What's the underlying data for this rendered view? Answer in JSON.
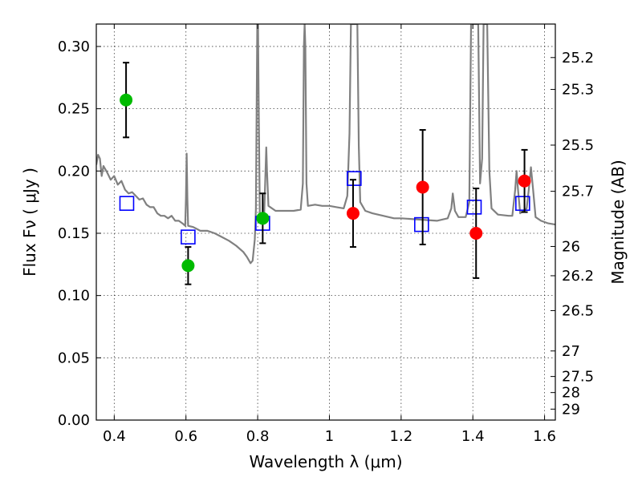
{
  "chart_data": {
    "type": "scatter",
    "xlabel": "Wavelength  λ (μm)",
    "ylabel": "Flux  Fν  ( μJy )",
    "y2label": "Magnitude (AB)",
    "xlim": [
      0.35,
      1.63
    ],
    "ylim": [
      0.0,
      0.318
    ],
    "grid": true,
    "x_ticks": [
      0.4,
      0.6,
      0.8,
      1.0,
      1.2,
      1.4,
      1.6
    ],
    "x_tick_labels": [
      "0.4",
      "0.6",
      "0.8",
      "1",
      "1.2",
      "1.4",
      "1.6"
    ],
    "y_ticks": [
      0.0,
      0.05,
      0.1,
      0.15,
      0.2,
      0.25,
      0.3
    ],
    "y_tick_labels": [
      "0.00",
      "0.05",
      "0.10",
      "0.15",
      "0.20",
      "0.25",
      "0.30"
    ],
    "y2_ticks": [
      {
        "label": "25.2",
        "flux": 0.2911
      },
      {
        "label": "25.3",
        "flux": 0.2655
      },
      {
        "label": "25.5",
        "flux": 0.2208
      },
      {
        "label": "25.7",
        "flux": 0.1837
      },
      {
        "label": "26",
        "flux": 0.1394
      },
      {
        "label": "26.2",
        "flux": 0.1159
      },
      {
        "label": "26.5",
        "flux": 0.0879
      },
      {
        "label": "27",
        "flux": 0.0555
      },
      {
        "label": "27.5",
        "flux": 0.035
      },
      {
        "label": "28",
        "flux": 0.0221
      },
      {
        "label": "29",
        "flux": 0.0088
      }
    ],
    "series": [
      {
        "marker": "circle",
        "color": "#00bb00",
        "points": [
          {
            "x": 0.433,
            "y": 0.257,
            "err": 0.03
          },
          {
            "x": 0.606,
            "y": 0.124,
            "err": 0.015
          },
          {
            "x": 0.814,
            "y": 0.162,
            "err": 0.02
          }
        ]
      },
      {
        "marker": "circle",
        "color": "#ff0000",
        "points": [
          {
            "x": 1.066,
            "y": 0.166,
            "err": 0.027
          },
          {
            "x": 1.26,
            "y": 0.187,
            "err": 0.046
          },
          {
            "x": 1.409,
            "y": 0.15,
            "err": 0.036
          },
          {
            "x": 1.544,
            "y": 0.192,
            "err": 0.025
          }
        ]
      },
      {
        "marker": "square",
        "color": "#0000ff",
        "points": [
          {
            "x": 0.435,
            "y": 0.174
          },
          {
            "x": 0.606,
            "y": 0.147
          },
          {
            "x": 0.814,
            "y": 0.158
          },
          {
            "x": 1.069,
            "y": 0.194
          },
          {
            "x": 1.257,
            "y": 0.157
          },
          {
            "x": 1.404,
            "y": 0.171
          },
          {
            "x": 1.539,
            "y": 0.174
          }
        ]
      }
    ],
    "model_spectrum": {
      "color": "#808080",
      "points": [
        [
          0.35,
          0.205
        ],
        [
          0.355,
          0.213
        ],
        [
          0.36,
          0.21
        ],
        [
          0.365,
          0.196
        ],
        [
          0.37,
          0.204
        ],
        [
          0.38,
          0.199
        ],
        [
          0.39,
          0.193
        ],
        [
          0.4,
          0.196
        ],
        [
          0.41,
          0.189
        ],
        [
          0.42,
          0.192
        ],
        [
          0.43,
          0.185
        ],
        [
          0.44,
          0.182
        ],
        [
          0.45,
          0.183
        ],
        [
          0.46,
          0.18
        ],
        [
          0.47,
          0.177
        ],
        [
          0.48,
          0.178
        ],
        [
          0.49,
          0.173
        ],
        [
          0.5,
          0.171
        ],
        [
          0.51,
          0.171
        ],
        [
          0.52,
          0.166
        ],
        [
          0.53,
          0.164
        ],
        [
          0.54,
          0.164
        ],
        [
          0.55,
          0.162
        ],
        [
          0.56,
          0.164
        ],
        [
          0.57,
          0.16
        ],
        [
          0.58,
          0.16
        ],
        [
          0.59,
          0.158
        ],
        [
          0.598,
          0.156
        ],
        [
          0.6,
          0.178
        ],
        [
          0.602,
          0.214
        ],
        [
          0.604,
          0.178
        ],
        [
          0.606,
          0.156
        ],
        [
          0.62,
          0.155
        ],
        [
          0.64,
          0.152
        ],
        [
          0.66,
          0.152
        ],
        [
          0.68,
          0.15
        ],
        [
          0.7,
          0.147
        ],
        [
          0.72,
          0.144
        ],
        [
          0.74,
          0.14
        ],
        [
          0.76,
          0.135
        ],
        [
          0.77,
          0.131
        ],
        [
          0.78,
          0.126
        ],
        [
          0.786,
          0.128
        ],
        [
          0.792,
          0.145
        ],
        [
          0.795,
          0.17
        ],
        [
          0.797,
          0.25
        ],
        [
          0.799,
          0.318
        ],
        [
          0.801,
          0.318
        ],
        [
          0.803,
          0.25
        ],
        [
          0.806,
          0.165
        ],
        [
          0.812,
          0.163
        ],
        [
          0.818,
          0.163
        ],
        [
          0.822,
          0.2
        ],
        [
          0.824,
          0.219
        ],
        [
          0.826,
          0.2
        ],
        [
          0.83,
          0.172
        ],
        [
          0.85,
          0.168
        ],
        [
          0.88,
          0.168
        ],
        [
          0.9,
          0.168
        ],
        [
          0.92,
          0.169
        ],
        [
          0.926,
          0.19
        ],
        [
          0.929,
          0.3
        ],
        [
          0.931,
          0.318
        ],
        [
          0.933,
          0.3
        ],
        [
          0.936,
          0.19
        ],
        [
          0.94,
          0.172
        ],
        [
          0.96,
          0.173
        ],
        [
          0.98,
          0.172
        ],
        [
          1.0,
          0.172
        ],
        [
          1.02,
          0.171
        ],
        [
          1.04,
          0.17
        ],
        [
          1.05,
          0.18
        ],
        [
          1.056,
          0.23
        ],
        [
          1.06,
          0.318
        ],
        [
          1.078,
          0.318
        ],
        [
          1.082,
          0.22
        ],
        [
          1.086,
          0.175
        ],
        [
          1.1,
          0.168
        ],
        [
          1.12,
          0.166
        ],
        [
          1.15,
          0.164
        ],
        [
          1.18,
          0.162
        ],
        [
          1.2,
          0.162
        ],
        [
          1.25,
          0.161
        ],
        [
          1.3,
          0.16
        ],
        [
          1.33,
          0.162
        ],
        [
          1.34,
          0.17
        ],
        [
          1.344,
          0.182
        ],
        [
          1.35,
          0.168
        ],
        [
          1.36,
          0.163
        ],
        [
          1.38,
          0.163
        ],
        [
          1.39,
          0.175
        ],
        [
          1.395,
          0.318
        ],
        [
          1.415,
          0.318
        ],
        [
          1.42,
          0.19
        ],
        [
          1.426,
          0.21
        ],
        [
          1.43,
          0.318
        ],
        [
          1.44,
          0.318
        ],
        [
          1.446,
          0.2
        ],
        [
          1.452,
          0.17
        ],
        [
          1.47,
          0.165
        ],
        [
          1.5,
          0.164
        ],
        [
          1.51,
          0.164
        ],
        [
          1.518,
          0.185
        ],
        [
          1.522,
          0.2
        ],
        [
          1.526,
          0.185
        ],
        [
          1.532,
          0.166
        ],
        [
          1.54,
          0.168
        ],
        [
          1.55,
          0.17
        ],
        [
          1.556,
          0.185
        ],
        [
          1.562,
          0.203
        ],
        [
          1.568,
          0.185
        ],
        [
          1.575,
          0.163
        ],
        [
          1.59,
          0.16
        ],
        [
          1.61,
          0.158
        ],
        [
          1.63,
          0.157
        ]
      ]
    }
  }
}
